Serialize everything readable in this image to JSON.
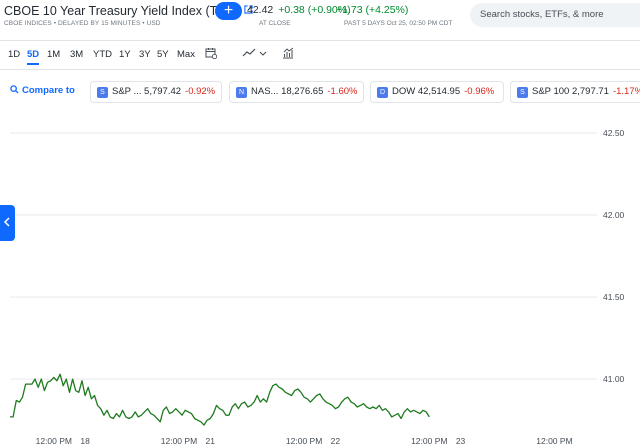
{
  "header": {
    "title": "CBOE 10 Year Treasury Yield Index (TNX)",
    "subtitle": "CBOE INDICES • DELAYED BY 15 MINUTES • USD",
    "follow_label": "+",
    "price": "42.42",
    "change": "+0.38 (+0.90%)",
    "at_close": "AT CLOSE",
    "period_change": "+1.73 (+4.25%)",
    "period_note": "PAST 5 DAYS Oct 25, 02:50 PM CDT",
    "search_placeholder": "Search stocks, ETFs, & more"
  },
  "ranges": [
    {
      "label": "1D",
      "active": false
    },
    {
      "label": "5D",
      "active": true
    },
    {
      "label": "1M",
      "active": false
    },
    {
      "label": "3M",
      "active": false
    },
    {
      "label": "YTD",
      "active": false
    },
    {
      "label": "1Y",
      "active": false
    },
    {
      "label": "3Y",
      "active": false
    },
    {
      "label": "5Y",
      "active": false
    },
    {
      "label": "Max",
      "active": false
    }
  ],
  "tools": [
    "calendar-icon",
    "line-chart-icon",
    "indicators-icon"
  ],
  "compare": {
    "label": "Compare to",
    "chips": [
      {
        "badge": "S",
        "name": "S&P ...",
        "value": "5,797.42",
        "change": "-0.92%"
      },
      {
        "badge": "N",
        "name": "NAS...",
        "value": "18,276.65",
        "change": "-1.60%"
      },
      {
        "badge": "D",
        "name": "DOW",
        "value": "42,514.95",
        "change": "-0.96%"
      },
      {
        "badge": "S",
        "name": "S&P 100",
        "value": "2,797.71",
        "change": "-1.17%"
      }
    ]
  },
  "colors": {
    "accent": "#0f69ff",
    "up": "#008a2e",
    "down": "#d9261c",
    "line": "#1f7a1f"
  },
  "chart_data": {
    "type": "line",
    "y_ticks": [
      "42.50",
      "42.00",
      "41.50",
      "41.00"
    ],
    "y_tick_values": [
      42.5,
      42.0,
      41.5,
      41.0
    ],
    "ylim": [
      40.69,
      42.64
    ],
    "x_ticks": [
      {
        "label": "12:00 PM",
        "x": 1.5
      },
      {
        "label": "18",
        "x": 2.0
      },
      {
        "label": "12:00 PM",
        "x": 3.5
      },
      {
        "label": "21",
        "x": 4.0
      },
      {
        "label": "12:00 PM",
        "x": 5.5
      },
      {
        "label": "22",
        "x": 6.0
      },
      {
        "label": "12:00 PM",
        "x": 7.5
      },
      {
        "label": "23",
        "x": 8.0
      },
      {
        "label": "12:00 PM",
        "x": 9.5
      }
    ],
    "xlim": [
      0.8,
      10.18
    ],
    "series": [
      {
        "values": [
          [
            0.8,
            40.77
          ],
          [
            0.85,
            40.77
          ],
          [
            0.9,
            40.87
          ],
          [
            0.95,
            40.86
          ],
          [
            1.0,
            40.89
          ],
          [
            1.05,
            40.97
          ],
          [
            1.1,
            40.97
          ],
          [
            1.15,
            40.97
          ],
          [
            1.2,
            41.0
          ],
          [
            1.25,
            40.95
          ],
          [
            1.3,
            41.0
          ],
          [
            1.35,
            40.93
          ],
          [
            1.4,
            40.98
          ],
          [
            1.45,
            40.99
          ],
          [
            1.5,
            41.01
          ],
          [
            1.55,
            40.99
          ],
          [
            1.6,
            41.03
          ],
          [
            1.65,
            40.96
          ],
          [
            1.7,
            41.0
          ],
          [
            1.75,
            40.92
          ],
          [
            1.8,
            41.0
          ],
          [
            1.85,
            40.93
          ],
          [
            1.9,
            40.92
          ],
          [
            1.95,
            40.99
          ],
          [
            2.0,
            40.9
          ],
          [
            2.05,
            40.95
          ],
          [
            2.1,
            40.88
          ],
          [
            2.15,
            40.9
          ],
          [
            2.2,
            40.84
          ],
          [
            2.25,
            40.82
          ],
          [
            2.3,
            40.78
          ],
          [
            2.35,
            40.81
          ],
          [
            2.4,
            40.77
          ],
          [
            2.45,
            40.76
          ],
          [
            2.5,
            40.79
          ],
          [
            2.55,
            40.77
          ],
          [
            2.6,
            40.81
          ],
          [
            2.65,
            40.77
          ],
          [
            2.7,
            40.76
          ],
          [
            2.75,
            40.77
          ],
          [
            2.8,
            40.8
          ],
          [
            2.85,
            40.77
          ],
          [
            2.9,
            40.78
          ],
          [
            2.95,
            40.8
          ],
          [
            3.0,
            40.82
          ],
          [
            3.05,
            40.79
          ],
          [
            3.1,
            40.78
          ],
          [
            3.15,
            40.76
          ],
          [
            3.2,
            40.74
          ],
          [
            3.25,
            40.81
          ],
          [
            3.3,
            40.83
          ],
          [
            3.35,
            40.79
          ],
          [
            3.4,
            40.8
          ],
          [
            3.45,
            40.82
          ],
          [
            3.5,
            40.8
          ],
          [
            3.55,
            40.78
          ],
          [
            3.6,
            40.81
          ],
          [
            3.65,
            40.8
          ],
          [
            3.7,
            40.79
          ],
          [
            3.75,
            40.76
          ],
          [
            3.8,
            40.75
          ],
          [
            3.85,
            40.74
          ],
          [
            3.9,
            40.72
          ],
          [
            3.95,
            40.75
          ],
          [
            4.0,
            40.76
          ],
          [
            4.05,
            40.79
          ],
          [
            4.1,
            40.84
          ],
          [
            4.15,
            40.82
          ],
          [
            4.2,
            40.81
          ],
          [
            4.25,
            40.78
          ],
          [
            4.3,
            40.78
          ],
          [
            4.35,
            40.83
          ],
          [
            4.4,
            40.85
          ],
          [
            4.45,
            40.82
          ],
          [
            4.5,
            40.85
          ],
          [
            4.55,
            40.86
          ],
          [
            4.6,
            40.83
          ],
          [
            4.65,
            40.84
          ],
          [
            4.7,
            40.86
          ],
          [
            4.75,
            40.9
          ],
          [
            4.8,
            40.86
          ],
          [
            4.85,
            40.88
          ],
          [
            4.9,
            40.86
          ],
          [
            4.95,
            40.92
          ],
          [
            5.0,
            40.96
          ],
          [
            5.05,
            40.97
          ],
          [
            5.1,
            40.95
          ],
          [
            5.15,
            40.94
          ],
          [
            5.2,
            40.92
          ],
          [
            5.25,
            40.91
          ],
          [
            5.3,
            40.9
          ],
          [
            5.35,
            40.93
          ],
          [
            5.4,
            40.94
          ],
          [
            5.45,
            40.92
          ],
          [
            5.5,
            40.89
          ],
          [
            5.55,
            40.88
          ],
          [
            5.6,
            40.86
          ],
          [
            5.65,
            40.88
          ],
          [
            5.7,
            40.9
          ],
          [
            5.75,
            40.91
          ],
          [
            5.8,
            40.88
          ],
          [
            5.85,
            40.86
          ],
          [
            5.9,
            40.85
          ],
          [
            5.95,
            40.84
          ],
          [
            6.0,
            40.82
          ],
          [
            6.05,
            40.83
          ],
          [
            6.1,
            40.86
          ],
          [
            6.15,
            40.88
          ],
          [
            6.2,
            40.89
          ],
          [
            6.25,
            40.86
          ],
          [
            6.3,
            40.85
          ],
          [
            6.35,
            40.83
          ],
          [
            6.4,
            40.84
          ],
          [
            6.45,
            40.85
          ],
          [
            6.5,
            40.83
          ],
          [
            6.55,
            40.82
          ],
          [
            6.6,
            40.83
          ],
          [
            6.65,
            40.82
          ],
          [
            6.7,
            40.84
          ],
          [
            6.75,
            40.81
          ],
          [
            6.8,
            40.82
          ],
          [
            6.85,
            40.8
          ],
          [
            6.9,
            40.77
          ],
          [
            6.95,
            40.78
          ],
          [
            7.0,
            40.79
          ],
          [
            7.05,
            40.76
          ],
          [
            7.1,
            40.8
          ],
          [
            7.15,
            40.82
          ],
          [
            7.2,
            40.8
          ],
          [
            7.25,
            40.81
          ],
          [
            7.3,
            40.8
          ],
          [
            7.35,
            40.79
          ],
          [
            7.4,
            40.81
          ],
          [
            7.45,
            40.8
          ],
          [
            7.5,
            40.77
          ]
        ]
      }
    ],
    "grid": true,
    "legend": "none"
  }
}
